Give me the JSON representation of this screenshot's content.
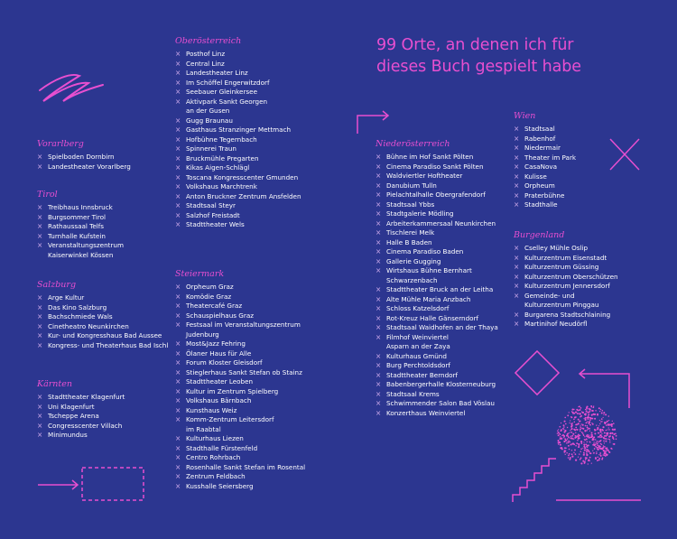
{
  "title": [
    "99 Orte, an denen ich für",
    "dieses Buch gespielt habe"
  ],
  "sections": {
    "vorarlberg": {
      "heading": "Vorarlberg",
      "items": [
        [
          "Spielboden Dornbirn"
        ],
        [
          "Landestheater Vorarlberg"
        ]
      ]
    },
    "tirol": {
      "heading": "Tirol",
      "items": [
        [
          "Treibhaus Innsbruck"
        ],
        [
          "Burgsommer Tirol"
        ],
        [
          "Rathaussaal Telfs"
        ],
        [
          "Turnhalle Kufstein"
        ],
        [
          "Veranstaltungszentrum",
          "Kaiserwinkel Kössen"
        ]
      ]
    },
    "salzburg": {
      "heading": "Salzburg",
      "items": [
        [
          "Arge Kultur"
        ],
        [
          "Das Kino Salzburg"
        ],
        [
          "Bachschmiede Wals"
        ],
        [
          "Cinetheatro Neunkirchen"
        ],
        [
          "Kur- und Kongresshaus Bad Aussee"
        ],
        [
          "Kongress- und Theaterhaus Bad Ischl"
        ]
      ]
    },
    "kaernten": {
      "heading": "Kärnten",
      "items": [
        [
          "Stadttheater Klagenfurt"
        ],
        [
          "Uni Klagenfurt"
        ],
        [
          "Tscheppe Arena"
        ],
        [
          "Congresscenter Villach"
        ],
        [
          "Minimundus"
        ]
      ]
    },
    "oberoesterreich": {
      "heading": "Oberösterreich",
      "items": [
        [
          "Posthof Linz"
        ],
        [
          "Central Linz"
        ],
        [
          "Landestheater Linz"
        ],
        [
          "Im Schöffel Engerwitzdorf"
        ],
        [
          "Seebauer Gleinkersee"
        ],
        [
          "Aktivpark Sankt Georgen",
          "an der Gusen"
        ],
        [
          "Gugg Braunau"
        ],
        [
          "Gasthaus Stranzinger Mettmach"
        ],
        [
          "Hofbühne Tegernbach"
        ],
        [
          "Spinnerei Traun"
        ],
        [
          "Bruckmühle Pregarten"
        ],
        [
          "Kikas Aigen-Schlägl"
        ],
        [
          "Toscana Kongresscenter Gmunden"
        ],
        [
          "Volkshaus Marchtrenk"
        ],
        [
          "Anton Bruckner Zentrum Ansfelden"
        ],
        [
          "Stadtsaal Steyr"
        ],
        [
          "Salzhof Freistadt"
        ],
        [
          "Stadttheater Wels"
        ]
      ]
    },
    "steiermark": {
      "heading": "Steiermark",
      "items": [
        [
          "Orpheum Graz"
        ],
        [
          "Komödie Graz"
        ],
        [
          "Theatercafé Graz"
        ],
        [
          "Schauspielhaus Graz"
        ],
        [
          "Festsaal im Veranstaltungszentrum",
          "Judenburg"
        ],
        [
          "Most&Jazz Fehring"
        ],
        [
          "Ölaner Haus für Alle"
        ],
        [
          "Forum Kloster Gleisdorf"
        ],
        [
          "Stieglerhaus Sankt Stefan ob Stainz"
        ],
        [
          "Stadttheater Leoben"
        ],
        [
          "Kultur im Zentrum Spielberg"
        ],
        [
          "Volkshaus Bärnbach"
        ],
        [
          "Kunsthaus Weiz"
        ],
        [
          "Komm-Zentrum Leitersdorf",
          "im Raabtal"
        ],
        [
          "Kulturhaus Liezen"
        ],
        [
          "Stadthalle Fürstenfeld"
        ],
        [
          "Centro Rohrbach"
        ],
        [
          "Rosenhalle Sankt Stefan im Rosental"
        ],
        [
          "Zentrum Feldbach"
        ],
        [
          "Kusshalle Seiersberg"
        ]
      ]
    },
    "niederoesterreich": {
      "heading": "Niederösterreich",
      "items": [
        [
          "Bühne im Hof Sankt Pölten"
        ],
        [
          "Cinema Paradiso Sankt Pölten"
        ],
        [
          "Waldviertler Hoftheater"
        ],
        [
          "Danubium Tulln"
        ],
        [
          "Pielachtalhalle Obergrafendorf"
        ],
        [
          "Stadtsaal Ybbs"
        ],
        [
          "Stadtgalerie Mödling"
        ],
        [
          "Arbeiterkammersaal Neunkirchen"
        ],
        [
          "Tischlerei Melk"
        ],
        [
          "Halle B Baden"
        ],
        [
          "Cinema Paradiso Baden"
        ],
        [
          "Gallerie Gugging"
        ],
        [
          "Wirtshaus Bühne Bernhart",
          "Schwarzenbach"
        ],
        [
          "Stadttheater Bruck an der Leitha"
        ],
        [
          "Alte Mühle Maria Anzbach"
        ],
        [
          "Schloss Katzelsdorf"
        ],
        [
          "Rot-Kreuz Halle Gänserndorf"
        ],
        [
          "Stadtsaal Waidhofen an der Thaya"
        ],
        [
          "Filmhof Weinviertel",
          "Asparn an der Zaya"
        ],
        [
          "Kulturhaus Gmünd"
        ],
        [
          "Burg Perchtoldsdorf"
        ],
        [
          "Stadttheater Berndorf"
        ],
        [
          "Babenbergerhalle Klosterneuburg"
        ],
        [
          "Stadtsaal Krems"
        ],
        [
          "Schwimmender Salon Bad Vöslau"
        ],
        [
          "Konzerthaus Weinviertel"
        ]
      ]
    },
    "wien": {
      "heading": "Wien",
      "items": [
        [
          "Stadtsaal"
        ],
        [
          "Rabenhof"
        ],
        [
          "Niedermair"
        ],
        [
          "Theater im Park"
        ],
        [
          "CasaNova"
        ],
        [
          "Kulisse"
        ],
        [
          "Orpheum"
        ],
        [
          "Praterbühne"
        ],
        [
          "Stadthalle"
        ]
      ]
    },
    "burgenland": {
      "heading": "Burgenland",
      "items": [
        [
          "Cselley Mühle Oslip"
        ],
        [
          "Kulturzentrum Eisenstadt"
        ],
        [
          "Kulturzentrum Güssing"
        ],
        [
          "Kulturzentrum Oberschützen"
        ],
        [
          "Kulturzentrum Jennersdorf"
        ],
        [
          "Gemeinde- und",
          "Kulturzentrum Pinggau"
        ],
        [
          "Burgarena Stadtschlaining"
        ],
        [
          "Martinihof Neudörfl"
        ]
      ]
    }
  },
  "colors": {
    "background": "#2c3690",
    "accent": "#e84fd0",
    "text": "#ffffff"
  },
  "decorations": [
    "zigzag-scribble",
    "right-arrow",
    "corner-arrow",
    "x-cross",
    "diamond",
    "hook-arrow",
    "dot-sphere",
    "staircase",
    "dashed-rectangle"
  ]
}
